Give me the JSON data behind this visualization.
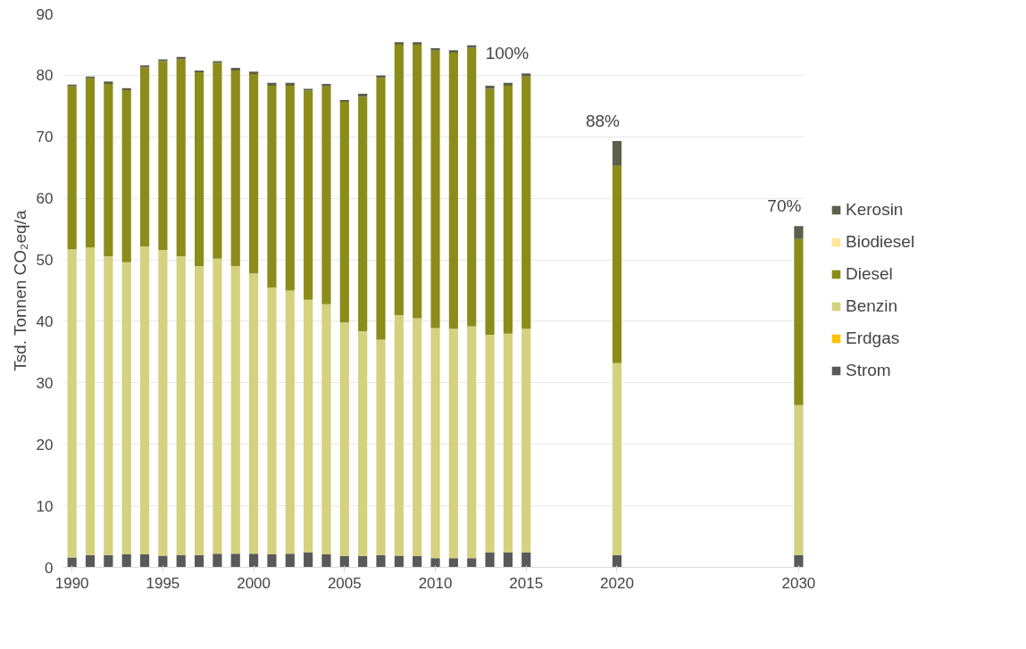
{
  "chart_data": {
    "type": "bar",
    "stacked": true,
    "ylabel": "Tsd. Tonnen CO₂eq/a",
    "x": [
      1990,
      1991,
      1992,
      1993,
      1994,
      1995,
      1996,
      1997,
      1998,
      1999,
      2000,
      2001,
      2002,
      2003,
      2004,
      2005,
      2006,
      2007,
      2008,
      2009,
      2010,
      2011,
      2012,
      2013,
      2014,
      2015,
      2020,
      2030
    ],
    "series": [
      {
        "name": "Strom",
        "color": "#595959",
        "values": [
          1.6,
          2.0,
          2.0,
          2.1,
          2.1,
          1.9,
          2.0,
          2.0,
          2.2,
          2.2,
          2.2,
          2.1,
          2.2,
          2.4,
          2.1,
          1.8,
          1.8,
          2.0,
          1.9,
          1.8,
          1.5,
          1.5,
          1.5,
          2.4,
          2.4,
          2.4,
          2.0,
          2.0
        ]
      },
      {
        "name": "Erdgas",
        "color": "#ffc000",
        "values": [
          0,
          0,
          0,
          0,
          0,
          0,
          0,
          0,
          0,
          0,
          0,
          0,
          0,
          0,
          0,
          0,
          0,
          0,
          0,
          0,
          0,
          0,
          0,
          0,
          0,
          0,
          0,
          0
        ]
      },
      {
        "name": "Benzin",
        "color": "#d4d17f",
        "values": [
          50.1,
          50.0,
          48.6,
          47.5,
          50.1,
          49.7,
          48.6,
          47.0,
          48.0,
          46.8,
          45.6,
          43.4,
          42.8,
          41.1,
          40.7,
          38.0,
          36.6,
          35.0,
          39.1,
          38.7,
          37.4,
          37.3,
          37.7,
          35.4,
          35.6,
          36.4,
          31.2,
          24.4
        ]
      },
      {
        "name": "Diesel",
        "color": "#8c8c1a",
        "values": [
          26.5,
          27.5,
          28.0,
          28.0,
          29.1,
          30.7,
          32.0,
          31.5,
          31.8,
          31.8,
          32.4,
          32.8,
          33.3,
          34.0,
          35.4,
          35.9,
          38.1,
          42.6,
          44.0,
          44.5,
          45.1,
          44.9,
          45.3,
          40.0,
          40.3,
          41.0,
          32.1,
          27.0
        ]
      },
      {
        "name": "Biodiesel",
        "color": "#ffe699",
        "values": [
          0,
          0,
          0,
          0,
          0,
          0,
          0,
          0,
          0,
          0,
          0,
          0,
          0,
          0,
          0,
          0,
          0,
          0,
          0,
          0,
          0,
          0,
          0,
          0,
          0,
          0,
          0,
          0
        ]
      },
      {
        "name": "Kerosin",
        "color": "#5c6048",
        "values": [
          0.3,
          0.3,
          0.4,
          0.3,
          0.3,
          0.3,
          0.4,
          0.3,
          0.3,
          0.4,
          0.4,
          0.5,
          0.5,
          0.3,
          0.4,
          0.3,
          0.5,
          0.4,
          0.4,
          0.4,
          0.4,
          0.4,
          0.4,
          0.5,
          0.5,
          0.5,
          4.0,
          2.1
        ]
      }
    ],
    "xlim": [
      1989.5,
      2030.3
    ],
    "xticks": [
      1990,
      1995,
      2000,
      2005,
      2010,
      2015,
      2020,
      2030
    ],
    "ylim": [
      0,
      90
    ],
    "yticks": [
      0,
      10,
      20,
      30,
      40,
      50,
      60,
      70,
      80,
      90
    ],
    "grid": "y",
    "legend": "right",
    "annotations": [
      {
        "text": "100%",
        "x": 2015,
        "y": 80.3
      },
      {
        "text": "88%",
        "x": 2020,
        "y": 69.3
      },
      {
        "text": "70%",
        "x": 2030,
        "y": 55.5
      }
    ]
  }
}
